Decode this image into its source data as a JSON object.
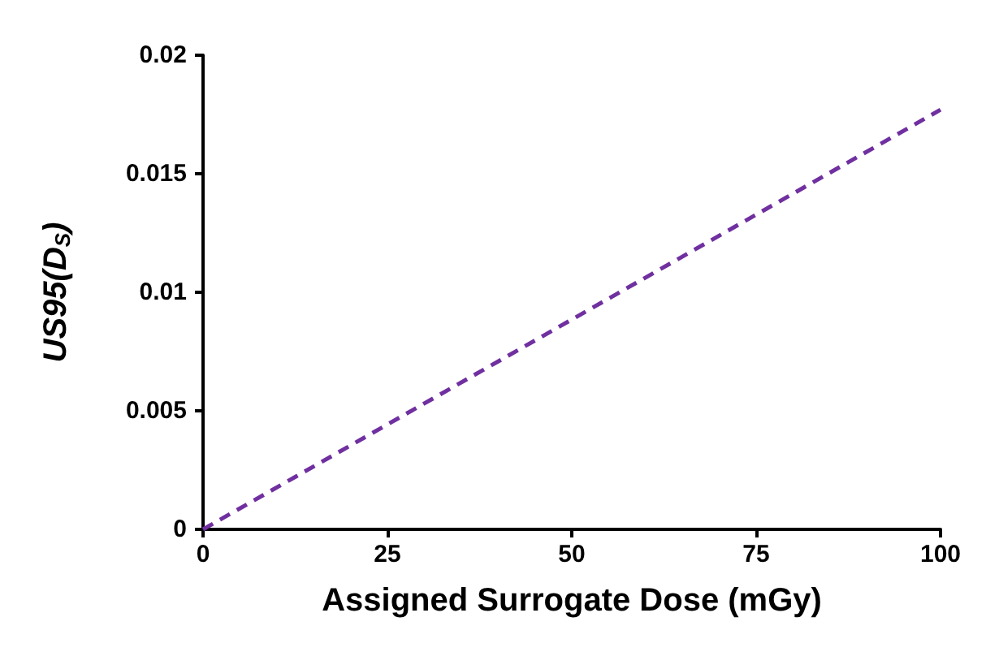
{
  "chart_data": {
    "type": "line",
    "xlabel": "Assigned Surrogate Dose (mGy)",
    "ylabel": "US95(D$_{S}$)",
    "x": [
      0,
      100
    ],
    "series": [
      {
        "color": "#7030a0",
        "values": [
          0,
          0.0177
        ]
      }
    ],
    "xlim": [
      0,
      100
    ],
    "xticks": [
      0,
      25,
      50,
      75,
      100
    ],
    "ylim": [
      0,
      0.02
    ],
    "yticks": [
      0,
      0.005,
      0.01,
      0.015,
      0.02
    ],
    "grid": false,
    "marker": "none",
    "line_style": "dashed"
  }
}
